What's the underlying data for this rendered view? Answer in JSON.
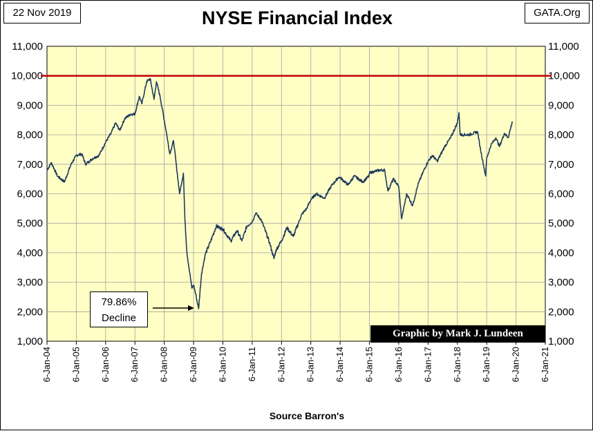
{
  "header": {
    "date": "22 Nov 2019",
    "site": "GATA.Org",
    "title": "NYSE Financial Index"
  },
  "footer": {
    "source": "Source Barron's",
    "credit": "Graphic by Mark J. Lundeen"
  },
  "annotation": {
    "line1": "79.86%",
    "line2": "Decline"
  },
  "colors": {
    "plot_background": "#ffffc5",
    "series": "#1f3a5c",
    "reference_line": "#c00000",
    "grid": "#a0a0a0"
  },
  "chart_data": {
    "type": "line",
    "title": "NYSE Financial Index",
    "xlabel": "Source Barron's",
    "ylabel": "",
    "ylim": [
      1000,
      11000
    ],
    "xlim": [
      "2004-01-06",
      "2021-01-06"
    ],
    "yticks": [
      "1,000",
      "2,000",
      "3,000",
      "4,000",
      "5,000",
      "6,000",
      "7,000",
      "8,000",
      "9,000",
      "10,000",
      "11,000"
    ],
    "xticks": [
      "6-Jan-04",
      "6-Jan-05",
      "6-Jan-06",
      "6-Jan-07",
      "6-Jan-08",
      "6-Jan-09",
      "6-Jan-10",
      "6-Jan-11",
      "6-Jan-12",
      "6-Jan-13",
      "6-Jan-14",
      "6-Jan-15",
      "6-Jan-16",
      "6-Jan-17",
      "6-Jan-18",
      "6-Jan-19",
      "6-Jan-20",
      "6-Jan-21"
    ],
    "reference_lines": [
      {
        "y": 10000
      }
    ],
    "grid": true,
    "dual_y_axis": true,
    "series": [
      {
        "x": [
          "2004-01-06",
          "2004-03-01",
          "2004-05-15",
          "2004-08-10",
          "2004-11-01",
          "2005-01-06",
          "2005-03-15",
          "2005-05-01",
          "2005-08-01",
          "2005-10-15",
          "2006-01-06",
          "2006-03-15",
          "2006-05-10",
          "2006-07-01",
          "2006-09-01",
          "2006-11-15",
          "2007-01-06",
          "2007-03-01",
          "2007-04-01",
          "2007-06-01",
          "2007-07-15",
          "2007-09-01",
          "2007-10-01",
          "2007-11-15",
          "2008-01-06",
          "2008-02-01",
          "2008-03-15",
          "2008-05-01",
          "2008-07-15",
          "2008-09-01",
          "2008-09-20",
          "2008-10-15",
          "2008-11-20",
          "2008-12-15",
          "2009-01-06",
          "2009-02-01",
          "2009-03-09",
          "2009-04-15",
          "2009-06-01",
          "2009-08-01",
          "2009-10-15",
          "2010-01-06",
          "2010-04-15",
          "2010-07-01",
          "2010-08-31",
          "2010-11-01",
          "2011-01-06",
          "2011-02-20",
          "2011-05-01",
          "2011-08-10",
          "2011-10-04",
          "2011-11-01",
          "2012-01-06",
          "2012-03-15",
          "2012-06-01",
          "2012-09-15",
          "2012-11-15",
          "2013-01-06",
          "2013-03-15",
          "2013-06-24",
          "2013-09-15",
          "2013-12-15",
          "2014-01-06",
          "2014-04-15",
          "2014-07-01",
          "2014-10-15",
          "2014-12-31",
          "2015-01-06",
          "2015-03-01",
          "2015-05-15",
          "2015-07-15",
          "2015-08-24",
          "2015-11-01",
          "2016-01-06",
          "2016-02-11",
          "2016-04-15",
          "2016-06-27",
          "2016-09-01",
          "2016-11-15",
          "2017-01-06",
          "2017-03-01",
          "2017-05-01",
          "2017-08-01",
          "2017-10-15",
          "2018-01-06",
          "2018-01-26",
          "2018-02-10",
          "2018-04-01",
          "2018-06-01",
          "2018-09-15",
          "2018-10-15",
          "2018-12-24",
          "2019-01-06",
          "2019-03-01",
          "2019-05-01",
          "2019-06-15",
          "2019-08-15",
          "2019-10-01",
          "2019-11-22"
        ],
        "values": [
          6800,
          7050,
          6600,
          6400,
          7000,
          7300,
          7350,
          7000,
          7200,
          7300,
          7750,
          8050,
          8400,
          8150,
          8550,
          8700,
          8700,
          9300,
          9050,
          9800,
          9900,
          9200,
          9800,
          9300,
          8500,
          8100,
          7350,
          7800,
          6000,
          6700,
          5100,
          4000,
          3300,
          2800,
          2900,
          2600,
          2100,
          3300,
          3950,
          4350,
          4900,
          4800,
          4400,
          4750,
          4400,
          4900,
          5050,
          5350,
          5100,
          4350,
          3800,
          4100,
          4400,
          4850,
          4550,
          5300,
          5500,
          5800,
          6000,
          5850,
          6250,
          6550,
          6550,
          6300,
          6600,
          6400,
          6600,
          6700,
          6750,
          6800,
          6800,
          6100,
          6500,
          6250,
          5150,
          6000,
          5600,
          6300,
          6800,
          7100,
          7300,
          7100,
          7600,
          7900,
          8400,
          8750,
          8000,
          8000,
          8000,
          8100,
          7600,
          6600,
          7200,
          7650,
          7900,
          7600,
          8050,
          7900,
          8450
        ]
      }
    ]
  }
}
